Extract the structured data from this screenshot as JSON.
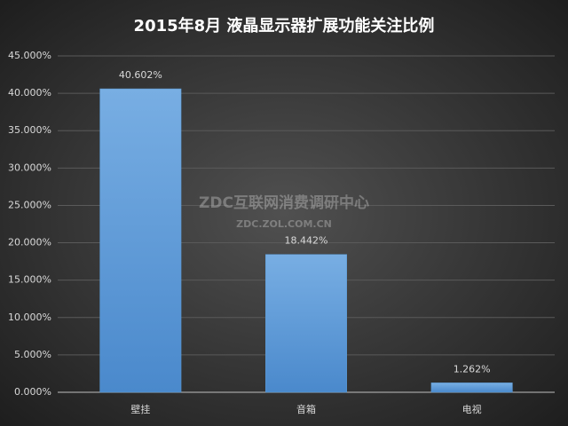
{
  "chart_data": {
    "type": "bar",
    "title": "2015年8月  液晶显示器扩展功能关注比例",
    "watermark": [
      "ZDC互联网消费调研中心",
      "ZDC.ZOL.COM.CN"
    ],
    "categories": [
      "壁挂",
      "音箱",
      "电视"
    ],
    "values": [
      40.602,
      18.442,
      1.262
    ],
    "value_labels": [
      "40.602%",
      "18.442%",
      "1.262%"
    ],
    "color": "#5b9bd5",
    "ylim": [
      0,
      45
    ],
    "yticks": [
      {
        "value": 0,
        "label": "0.000%"
      },
      {
        "value": 5,
        "label": "5.000%"
      },
      {
        "value": 10,
        "label": "10.000%"
      },
      {
        "value": 15,
        "label": "15.000%"
      },
      {
        "value": 20,
        "label": "20.000%"
      },
      {
        "value": 25,
        "label": "25.000%"
      },
      {
        "value": 30,
        "label": "30.000%"
      },
      {
        "value": 35,
        "label": "35.000%"
      },
      {
        "value": 40,
        "label": "40.000%"
      },
      {
        "value": 45,
        "label": "45.000%"
      }
    ],
    "grid": true
  }
}
